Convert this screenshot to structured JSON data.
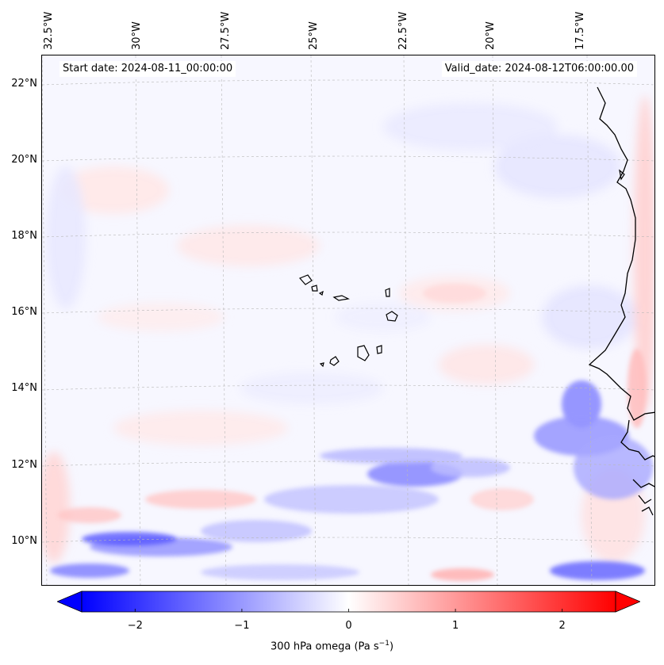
{
  "map": {
    "start_date_label": "Start date: 2024-08-11_00:00:00",
    "valid_date_label": "Valid_date: 2024-08-12T06:00:00.00",
    "lon_labels": [
      "32.5°W",
      "30°W",
      "27.5°W",
      "25°W",
      "22.5°W",
      "20°W",
      "17.5°W"
    ],
    "lat_labels": [
      "22°N",
      "20°N",
      "18°N",
      "16°N",
      "14°N",
      "12°N",
      "10°N"
    ],
    "field": "300 hPa omega",
    "extent": {
      "lon_min": -33.0,
      "lon_max": -15.5,
      "lat_min": 8.7,
      "lat_max": 22.8
    }
  },
  "colorbar": {
    "ticks": [
      "−2",
      "−1",
      "0",
      "1",
      "2"
    ],
    "tick_values": [
      -2,
      -1,
      0,
      1,
      2
    ],
    "range": [
      -2.5,
      2.5
    ],
    "label_main": "300 hPa omega (Pa s",
    "label_sup": "−1",
    "label_end": ")",
    "colormap": "bwr",
    "color_min": "#0000ff",
    "color_mid": "#ffffff",
    "color_max": "#ff0000"
  }
}
